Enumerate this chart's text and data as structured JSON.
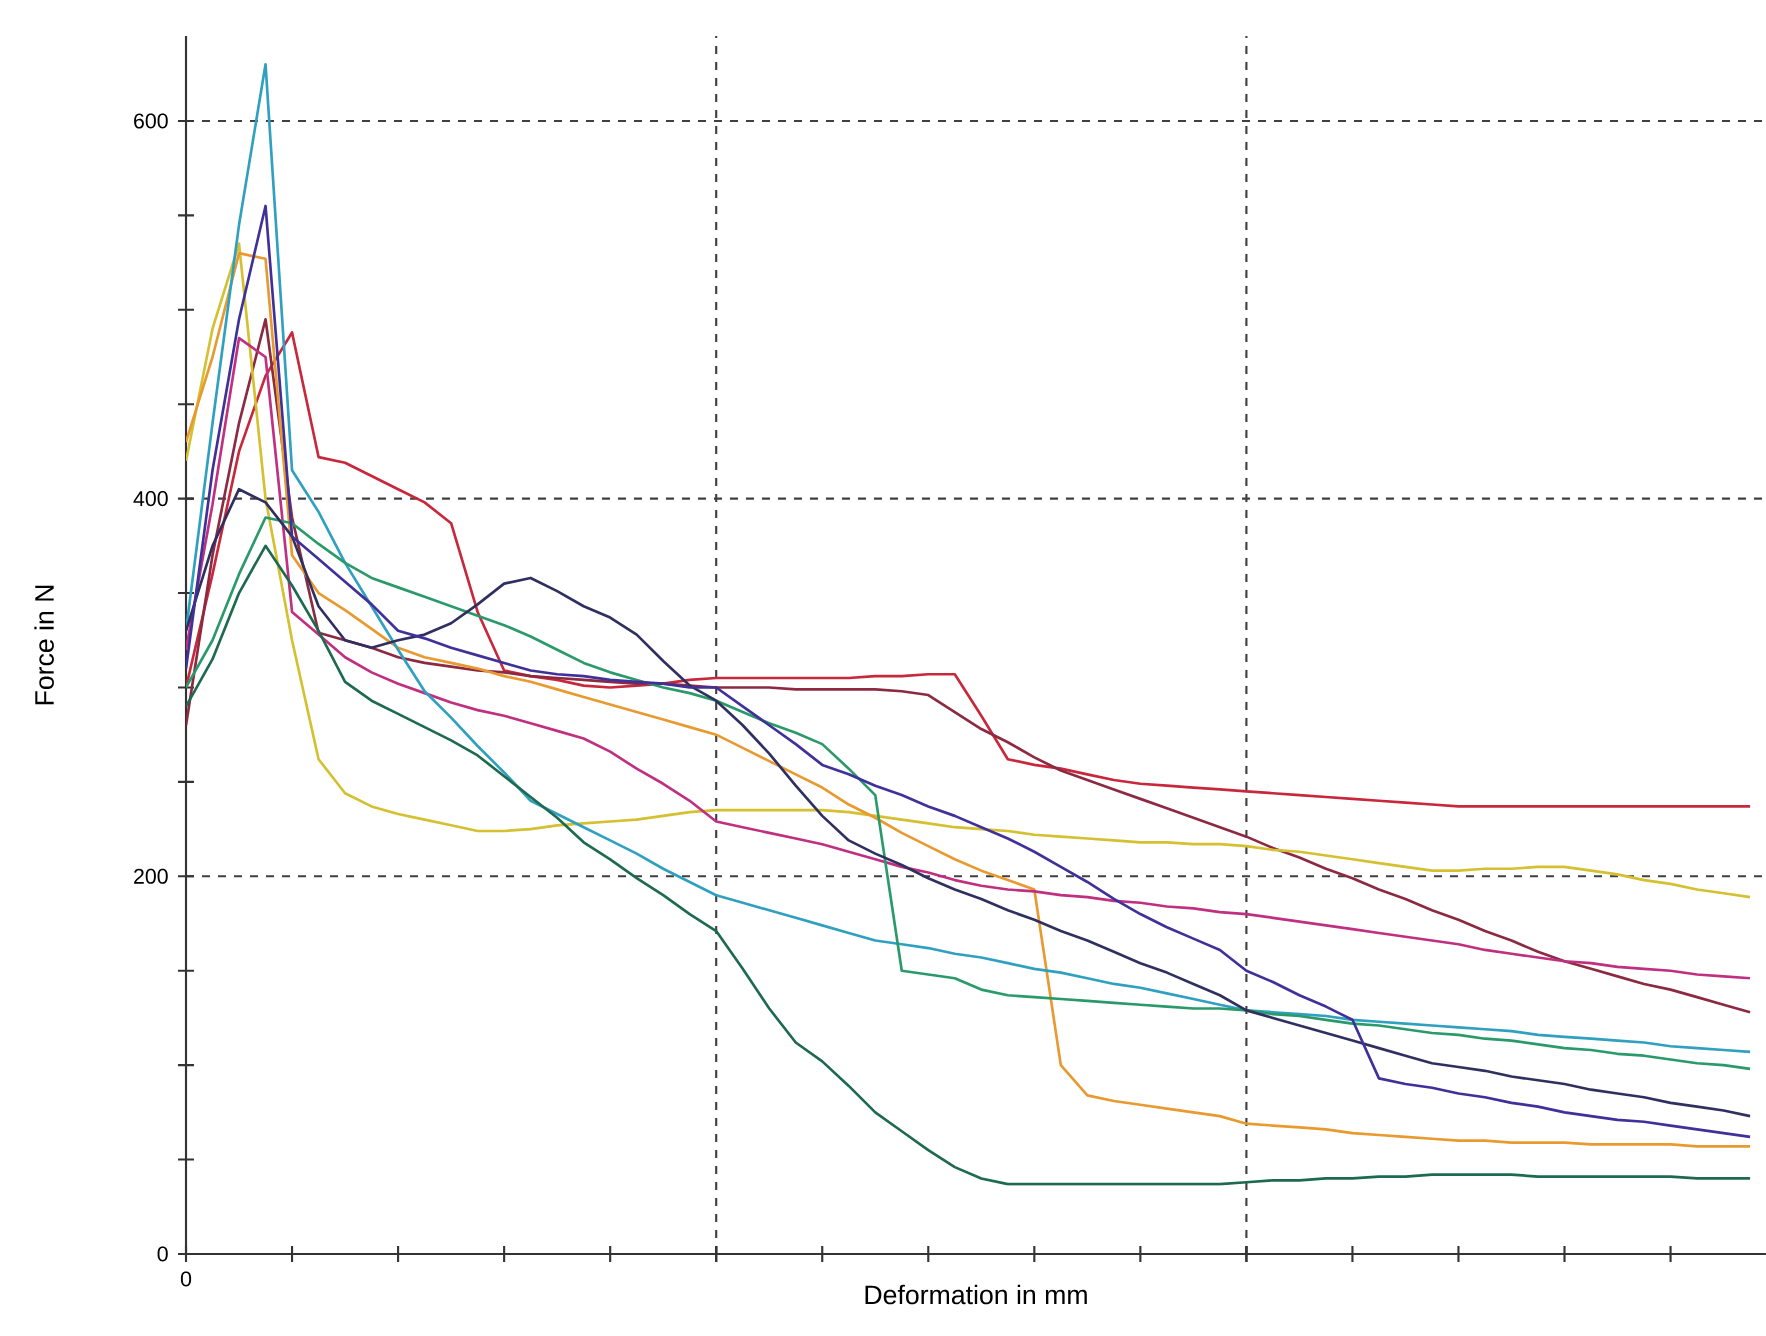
{
  "chart_data": {
    "type": "line",
    "xlabel": "Deformation in mm",
    "ylabel": "Force in N",
    "categories": [
      "0",
      null,
      null,
      null,
      null,
      null,
      null,
      null,
      null,
      null,
      null,
      null,
      null,
      null,
      null,
      null,
      null,
      null,
      null,
      null,
      null,
      null,
      null,
      null,
      null,
      null,
      null,
      null,
      null,
      null,
      null,
      null,
      null,
      null,
      null,
      null,
      null,
      null,
      null,
      null,
      null,
      null,
      null,
      null,
      null,
      null,
      null,
      null,
      null,
      null,
      null,
      null,
      null,
      null,
      null,
      null,
      null,
      null,
      null,
      null
    ],
    "ylim": [
      0,
      645
    ],
    "yticks": [
      0,
      200,
      400,
      600
    ],
    "grid": true,
    "marker": "none",
    "series": [
      {
        "color": "#c8283c",
        "values": [
          300,
          360,
          425,
          465,
          488,
          422,
          419,
          412,
          405,
          398,
          387,
          340,
          309,
          306,
          304,
          301,
          300,
          301,
          302,
          304,
          305,
          305,
          305,
          305,
          305,
          305,
          306,
          306,
          307,
          307,
          285,
          262,
          259,
          257,
          254,
          251,
          249,
          248,
          247,
          246,
          245,
          244,
          243,
          242,
          241,
          240,
          239,
          238,
          237,
          237,
          237,
          237,
          237,
          237,
          237,
          237,
          237,
          237,
          237,
          237
        ]
      },
      {
        "color": "#8b2a40",
        "values": [
          280,
          370,
          440,
          495,
          390,
          329,
          325,
          321,
          316,
          313,
          311,
          309,
          308,
          306,
          305,
          304,
          303,
          302,
          302,
          301,
          300,
          300,
          300,
          299,
          299,
          299,
          299,
          298,
          296,
          287,
          278,
          271,
          263,
          256,
          251,
          246,
          241,
          236,
          231,
          226,
          221,
          215,
          210,
          204,
          199,
          193,
          188,
          182,
          177,
          171,
          166,
          160,
          155,
          151,
          147,
          143,
          140,
          136,
          132,
          128
        ]
      },
      {
        "color": "#d4c030",
        "values": [
          420,
          490,
          535,
          400,
          325,
          262,
          244,
          237,
          233,
          230,
          227,
          224,
          224,
          225,
          227,
          228,
          229,
          230,
          232,
          234,
          235,
          235,
          235,
          235,
          235,
          234,
          232,
          230,
          228,
          226,
          225,
          224,
          222,
          221,
          220,
          219,
          218,
          218,
          217,
          217,
          216,
          214,
          213,
          211,
          209,
          207,
          205,
          203,
          203,
          204,
          204,
          205,
          205,
          203,
          201,
          198,
          196,
          193,
          191,
          189
        ]
      },
      {
        "color": "#e89a30",
        "values": [
          430,
          475,
          530,
          527,
          370,
          350,
          341,
          331,
          321,
          316,
          313,
          310,
          306,
          303,
          299,
          295,
          291,
          287,
          283,
          279,
          275,
          268,
          261,
          254,
          247,
          238,
          231,
          223,
          216,
          209,
          203,
          198,
          193,
          100,
          84,
          81,
          79,
          77,
          75,
          73,
          69,
          68,
          67,
          66,
          64,
          63,
          62,
          61,
          60,
          60,
          59,
          59,
          59,
          58,
          58,
          58,
          58,
          57,
          57,
          57
        ]
      },
      {
        "color": "#c03080",
        "values": [
          320,
          397,
          485,
          475,
          340,
          328,
          316,
          308,
          302,
          297,
          292,
          288,
          285,
          281,
          277,
          273,
          266,
          257,
          249,
          240,
          229,
          226,
          223,
          220,
          217,
          213,
          209,
          205,
          202,
          198,
          195,
          193,
          192,
          190,
          189,
          187,
          186,
          184,
          183,
          181,
          180,
          178,
          176,
          174,
          172,
          170,
          168,
          166,
          164,
          161,
          159,
          157,
          155,
          154,
          152,
          151,
          150,
          148,
          147,
          146
        ]
      },
      {
        "color": "#30a0c0",
        "values": [
          330,
          440,
          545,
          630,
          415,
          393,
          366,
          343,
          320,
          298,
          284,
          269,
          255,
          240,
          233,
          226,
          219,
          212,
          204,
          197,
          190,
          186,
          182,
          178,
          174,
          170,
          166,
          164,
          162,
          159,
          157,
          154,
          151,
          149,
          146,
          143,
          141,
          138,
          135,
          132,
          129,
          128,
          127,
          126,
          124,
          123,
          122,
          121,
          120,
          119,
          118,
          116,
          115,
          114,
          113,
          112,
          110,
          109,
          108,
          107
        ]
      },
      {
        "color": "#2a9a6a",
        "values": [
          300,
          325,
          360,
          390,
          387,
          376,
          366,
          358,
          353,
          348,
          343,
          338,
          333,
          327,
          320,
          313,
          308,
          304,
          300,
          297,
          293,
          287,
          281,
          276,
          270,
          257,
          243,
          150,
          148,
          146,
          140,
          137,
          136,
          135,
          134,
          133,
          132,
          131,
          130,
          130,
          129,
          127,
          126,
          124,
          122,
          121,
          119,
          117,
          116,
          114,
          113,
          111,
          109,
          108,
          106,
          105,
          103,
          101,
          100,
          98
        ]
      },
      {
        "color": "#1e6a50",
        "values": [
          290,
          315,
          350,
          375,
          354,
          330,
          303,
          293,
          286,
          279,
          272,
          264,
          253,
          242,
          231,
          218,
          209,
          199,
          190,
          180,
          171,
          151,
          130,
          112,
          102,
          89,
          75,
          65,
          55,
          46,
          40,
          37,
          37,
          37,
          37,
          37,
          37,
          37,
          37,
          37,
          38,
          39,
          39,
          40,
          40,
          41,
          41,
          42,
          42,
          42,
          42,
          41,
          41,
          41,
          41,
          41,
          41,
          40,
          40,
          40
        ]
      },
      {
        "color": "#303060",
        "values": [
          330,
          375,
          405,
          398,
          380,
          343,
          325,
          321,
          325,
          328,
          334,
          344,
          355,
          358,
          351,
          343,
          337,
          328,
          314,
          301,
          293,
          280,
          265,
          248,
          232,
          219,
          212,
          206,
          199,
          193,
          188,
          182,
          177,
          171,
          166,
          160,
          154,
          149,
          143,
          137,
          129,
          125,
          121,
          117,
          113,
          109,
          105,
          101,
          99,
          97,
          94,
          92,
          90,
          87,
          85,
          83,
          80,
          78,
          76,
          73
        ]
      },
      {
        "color": "#40309a",
        "values": [
          310,
          415,
          495,
          555,
          380,
          368,
          356,
          344,
          330,
          326,
          321,
          317,
          313,
          309,
          307,
          306,
          304,
          303,
          302,
          300,
          300,
          290,
          280,
          270,
          259,
          254,
          248,
          243,
          237,
          232,
          226,
          220,
          213,
          205,
          197,
          188,
          180,
          173,
          167,
          161,
          150,
          144,
          137,
          131,
          124,
          93,
          90,
          88,
          85,
          83,
          80,
          78,
          75,
          73,
          71,
          70,
          68,
          66,
          64,
          62
        ]
      }
    ]
  }
}
